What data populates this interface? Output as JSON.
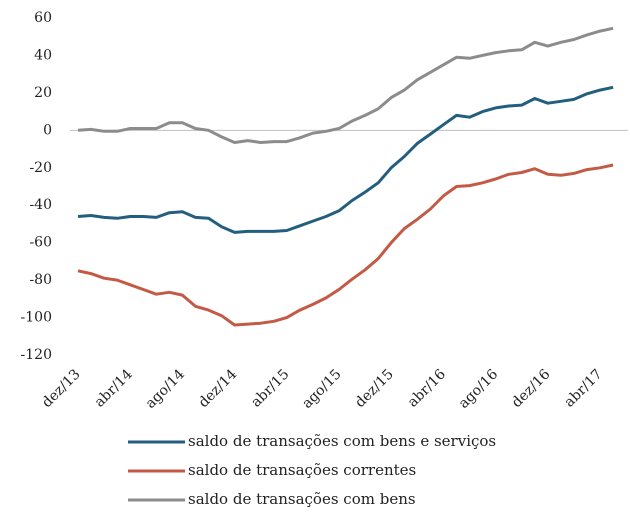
{
  "chart_data": {
    "type": "line",
    "categories": [
      "dez/13",
      null,
      null,
      null,
      "abr/14",
      null,
      null,
      null,
      "ago/14",
      null,
      null,
      null,
      "dez/14",
      null,
      null,
      null,
      "abr/15",
      null,
      null,
      null,
      "ago/15",
      null,
      null,
      null,
      "dez/15",
      null,
      null,
      null,
      "abr/16",
      null,
      null,
      null,
      "ago/16",
      null,
      null,
      null,
      "dez/16",
      null,
      null,
      null,
      "abr/17",
      null
    ],
    "series": [
      {
        "name": "saldo de transações com bens e serviços",
        "color": "#245e7f",
        "values": [
          -46,
          -45.5,
          -46.5,
          -47,
          -46,
          -46,
          -46.5,
          -44,
          -43.5,
          -46.5,
          -47,
          -51.5,
          -54.5,
          -54,
          -54,
          -54,
          -53.5,
          -51,
          -48.5,
          -46,
          -43,
          -37.5,
          -33,
          -28,
          -20,
          -14,
          -7,
          -2,
          3,
          8,
          7,
          10,
          12,
          13,
          13.5,
          17,
          14.5,
          15.5,
          16.5,
          19.5,
          21.5,
          23
        ]
      },
      {
        "name": "saldo de transações correntes",
        "color": "#c35a46",
        "values": [
          -75,
          -76.5,
          -79,
          -80,
          -82.5,
          -85,
          -87.5,
          -86.5,
          -88,
          -94,
          -96,
          -99,
          -104,
          -103.5,
          -103,
          -102,
          -100,
          -96,
          -93,
          -89.5,
          -85,
          -79.5,
          -74.5,
          -68.5,
          -60,
          -52.5,
          -47.5,
          -42,
          -35,
          -30,
          -29.5,
          -28,
          -26,
          -23.5,
          -22.5,
          -20.5,
          -23.5,
          -24,
          -23,
          -21,
          -20,
          -18.5
        ]
      },
      {
        "name": "saldo de transações com bens",
        "color": "#8c8c8c",
        "values": [
          0,
          0.5,
          -0.5,
          -0.5,
          1,
          1,
          1,
          4,
          4,
          1,
          0,
          -3.5,
          -6.5,
          -5.5,
          -6.5,
          -6,
          -6,
          -4,
          -1.5,
          -0.5,
          1,
          5,
          8,
          11.5,
          17.5,
          21.5,
          27,
          31,
          35,
          39,
          38.5,
          40,
          41.5,
          42.5,
          43,
          47,
          45,
          47,
          48.5,
          51,
          53,
          54.5
        ]
      }
    ],
    "ylim": [
      -120,
      60
    ],
    "yticks": [
      -120,
      -100,
      -80,
      -60,
      -40,
      -20,
      0,
      20,
      40,
      60
    ]
  }
}
